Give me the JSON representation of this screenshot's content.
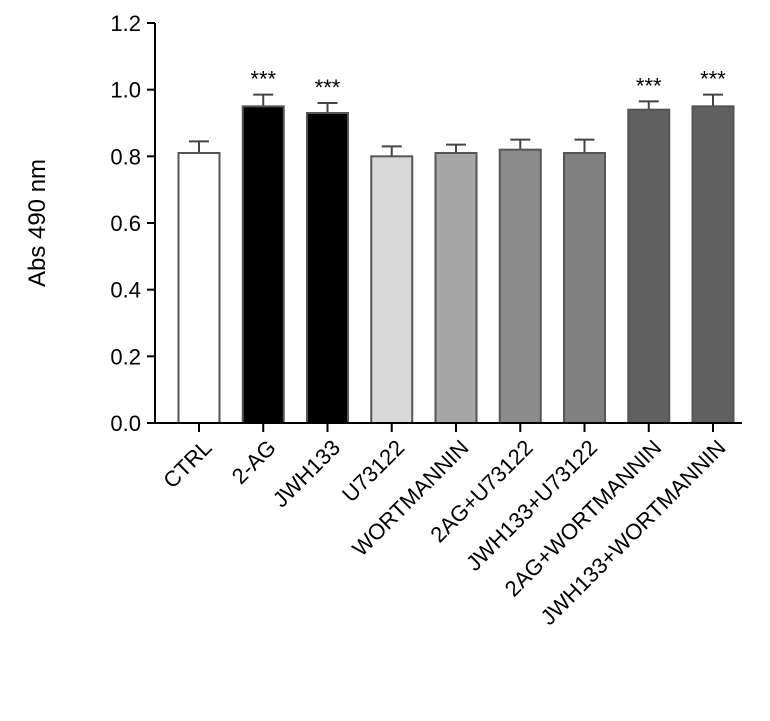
{
  "chart_data": {
    "type": "bar",
    "title": "",
    "xlabel": "",
    "ylabel": "Abs 490 nm",
    "ylim": [
      0,
      1.2
    ],
    "yticks": [
      0,
      0.2,
      0.4,
      0.6,
      0.8,
      1.0,
      1.2
    ],
    "ytick_labels": [
      "0.0",
      "0.2",
      "0.4",
      "0.6",
      "0.8",
      "1.0",
      "1.2"
    ],
    "categories": [
      "CTRL",
      "2-AG",
      "JWH133",
      "U73122",
      "WORTMANNIN",
      "2AG+U73122",
      "JWH133+U73122",
      "2AG+WORTMANNIN",
      "JWH133+WORTMANNIN"
    ],
    "values": [
      0.81,
      0.95,
      0.93,
      0.8,
      0.81,
      0.82,
      0.81,
      0.94,
      0.95
    ],
    "errors": [
      0.035,
      0.035,
      0.03,
      0.03,
      0.025,
      0.03,
      0.04,
      0.025,
      0.035
    ],
    "significance": [
      "",
      "***",
      "***",
      "",
      "",
      "",
      "",
      "***",
      "***"
    ],
    "bar_colors": [
      "#ffffff",
      "#000000",
      "#000000",
      "#d9d9d9",
      "#a6a6a6",
      "#8c8c8c",
      "#808080",
      "#606060",
      "#606060"
    ],
    "grid": false,
    "legend": "none"
  }
}
